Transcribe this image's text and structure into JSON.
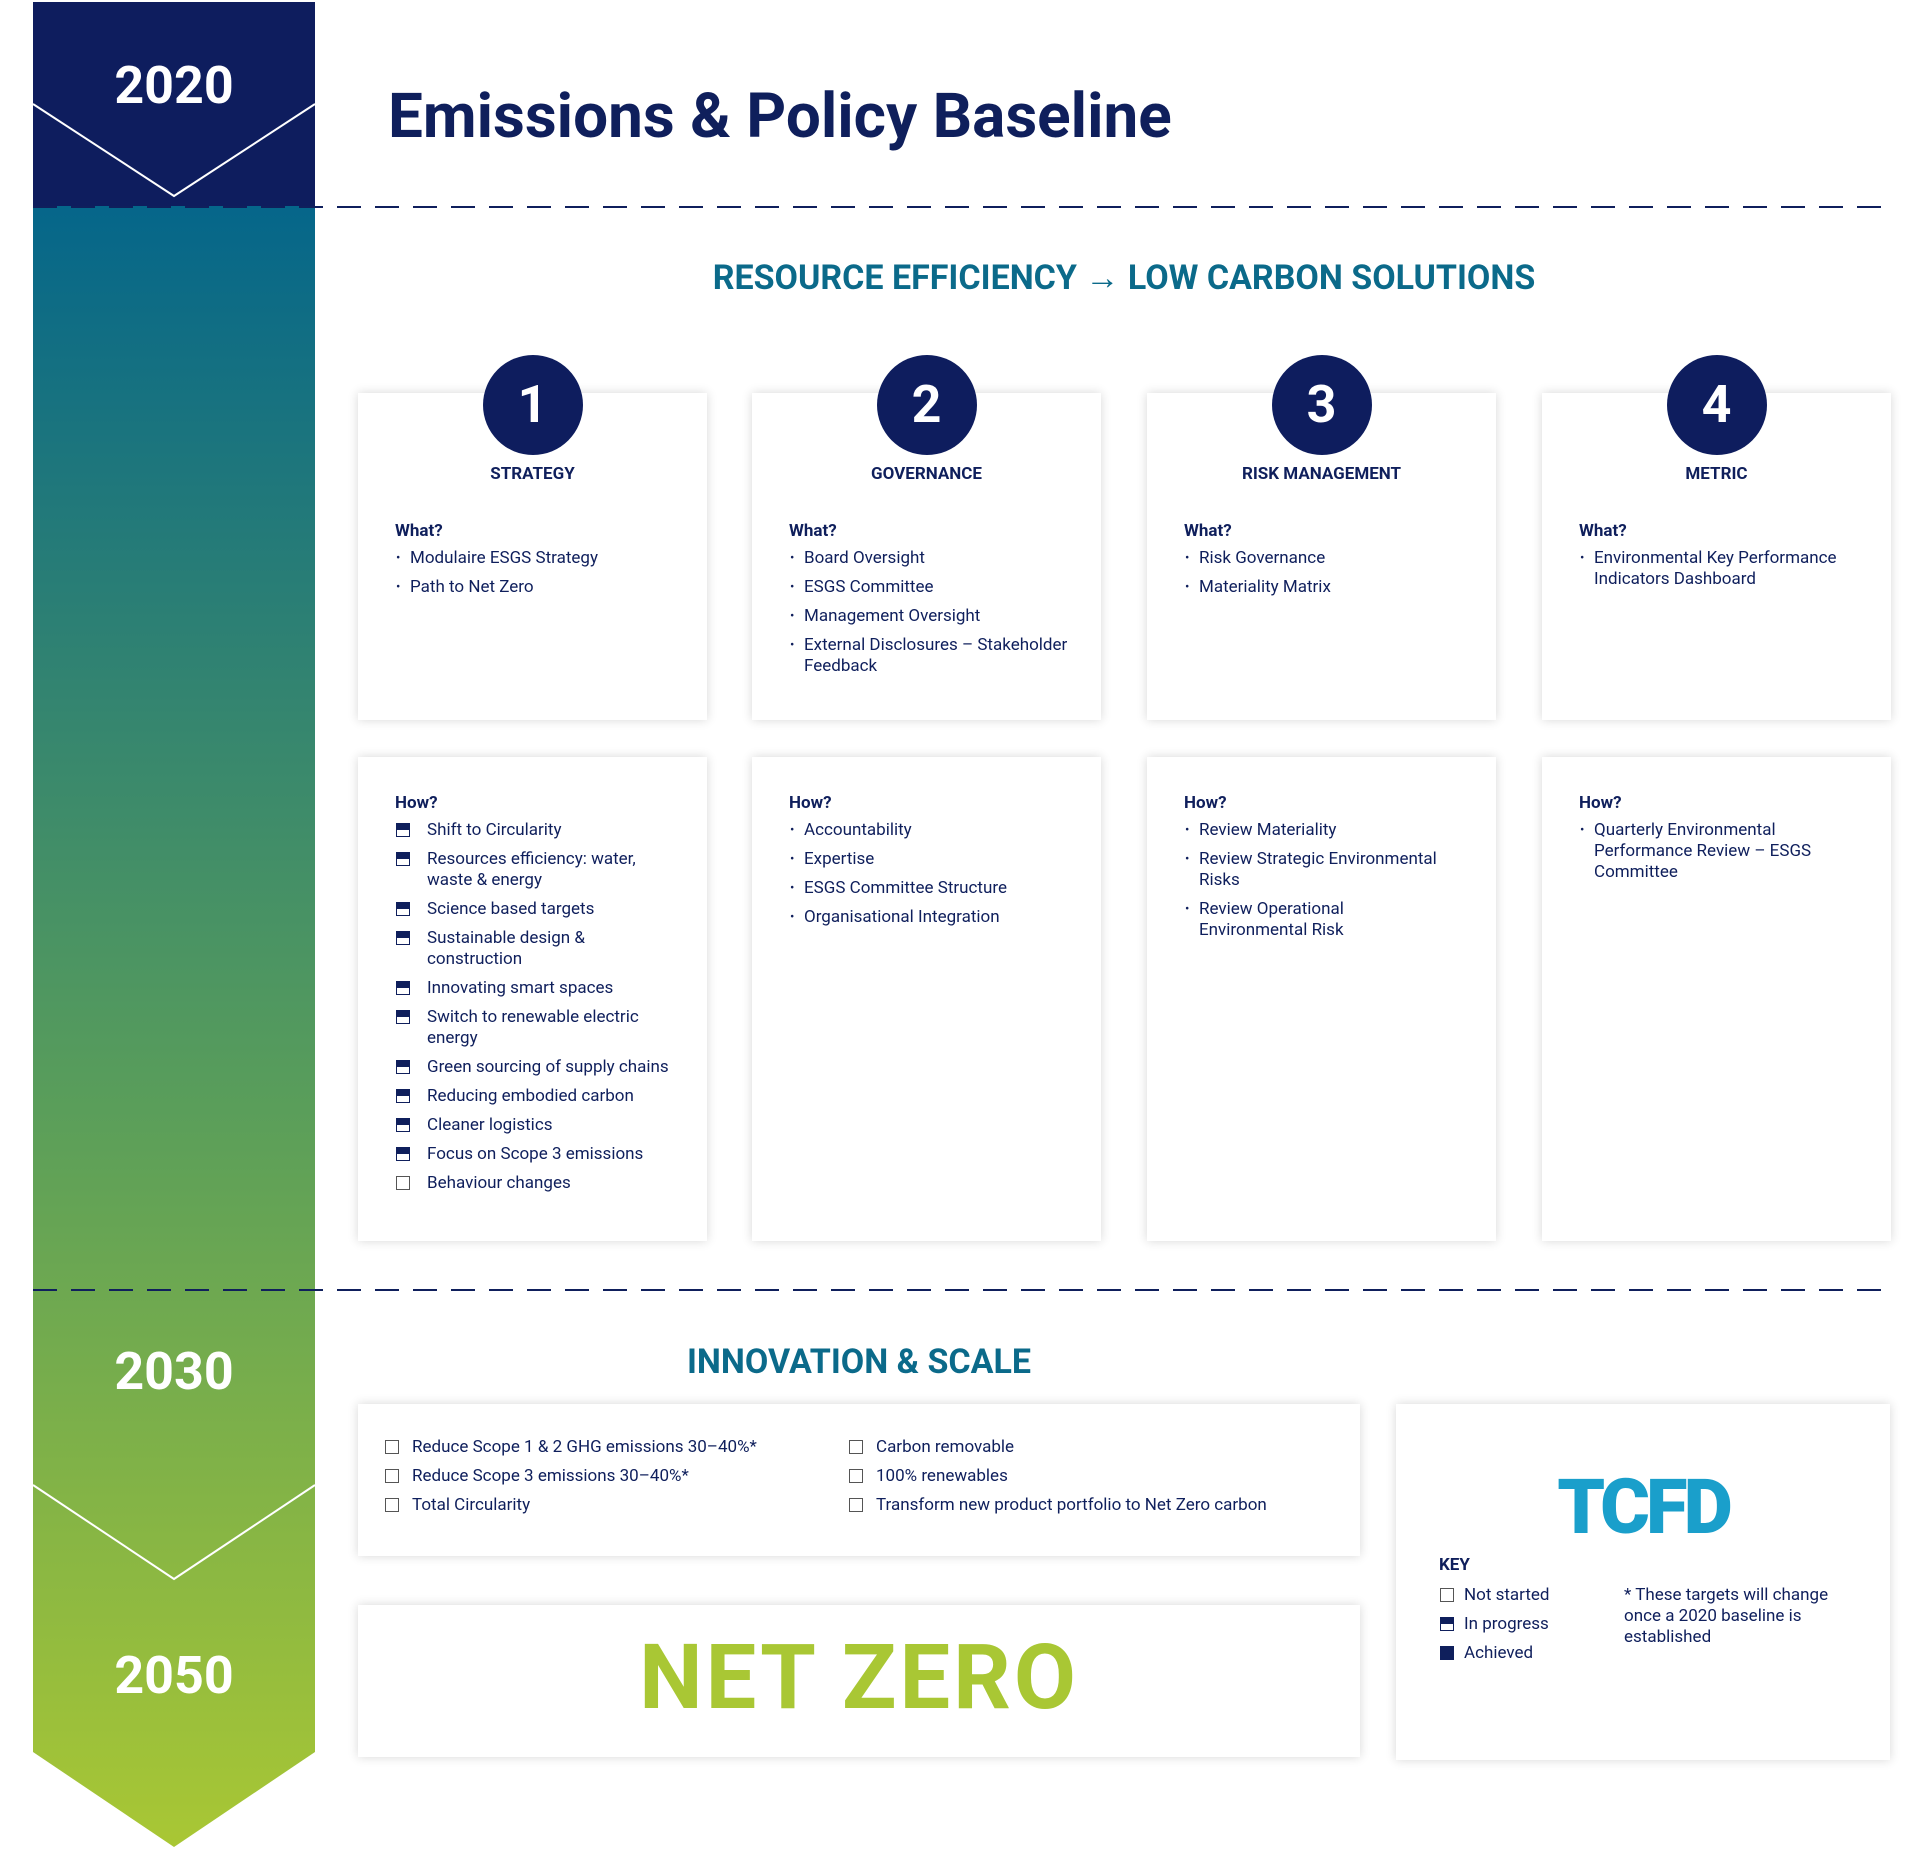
{
  "timeline": {
    "years": [
      "2020",
      "2030",
      "2050"
    ]
  },
  "header": {
    "title": "Emissions & Policy Baseline"
  },
  "section1": {
    "title": "RESOURCE EFFICIENCY → LOW CARBON SOLUTIONS"
  },
  "pillars": [
    {
      "number": "1",
      "name": "STRATEGY",
      "what_label": "What?",
      "what": [
        "Modulaire ESGS Strategy",
        "Path to Net Zero"
      ],
      "how_label": "How?",
      "how": [
        {
          "text": "Shift to Circularity",
          "status": "in-progress"
        },
        {
          "text": "Resources efficiency: water, waste & energy",
          "status": "in-progress"
        },
        {
          "text": "Science based targets",
          "status": "in-progress"
        },
        {
          "text": "Sustainable design & construction",
          "status": "in-progress"
        },
        {
          "text": "Innovating smart spaces",
          "status": "in-progress"
        },
        {
          "text": "Switch to renewable electric energy",
          "status": "in-progress"
        },
        {
          "text": "Green sourcing of supply chains",
          "status": "in-progress"
        },
        {
          "text": "Reducing embodied carbon",
          "status": "in-progress"
        },
        {
          "text": "Cleaner logistics",
          "status": "in-progress"
        },
        {
          "text": "Focus on Scope 3 emissions",
          "status": "in-progress"
        },
        {
          "text": "Behaviour changes",
          "status": "not-started"
        }
      ]
    },
    {
      "number": "2",
      "name": "GOVERNANCE",
      "what_label": "What?",
      "what": [
        "Board Oversight",
        "ESGS Committee",
        "Management Oversight",
        "External Disclosures – Stakeholder Feedback"
      ],
      "how_label": "How?",
      "how": [
        "Accountability",
        "Expertise",
        "ESGS Committee Structure",
        "Organisational Integration"
      ]
    },
    {
      "number": "3",
      "name": "RISK MANAGEMENT",
      "what_label": "What?",
      "what": [
        "Risk Governance",
        "Materiality Matrix"
      ],
      "how_label": "How?",
      "how": [
        "Review Materiality",
        "Review Strategic Environmental Risks",
        "Review Operational Environmental Risk"
      ]
    },
    {
      "number": "4",
      "name": "METRIC",
      "what_label": "What?",
      "what": [
        "Environmental Key Performance Indicators Dashboard"
      ],
      "how_label": "How?",
      "how": [
        "Quarterly Environmental Performance Review – ESGS Committee"
      ]
    }
  ],
  "section2": {
    "title": "INNOVATION & SCALE",
    "goals": [
      {
        "text": "Reduce Scope 1 & 2 GHG emissions 30–40%*",
        "status": "not-started"
      },
      {
        "text": "Reduce Scope 3 emissions 30–40%*",
        "status": "not-started"
      },
      {
        "text": "Total Circularity",
        "status": "not-started"
      },
      {
        "text": "Carbon removable",
        "status": "not-started"
      },
      {
        "text": "100% renewables",
        "status": "not-started"
      },
      {
        "text": "Transform new product portfolio to Net Zero carbon",
        "status": "not-started"
      }
    ]
  },
  "net_zero": {
    "text": "NET ZERO"
  },
  "tcfd": {
    "logo": "TCFD",
    "key_title": "KEY",
    "key": [
      {
        "label": "Not started",
        "status": "not-started"
      },
      {
        "label": "In progress",
        "status": "in-progress"
      },
      {
        "label": "Achieved",
        "status": "achieved"
      }
    ],
    "note": "* These targets will change once a 2020 baseline is established"
  }
}
